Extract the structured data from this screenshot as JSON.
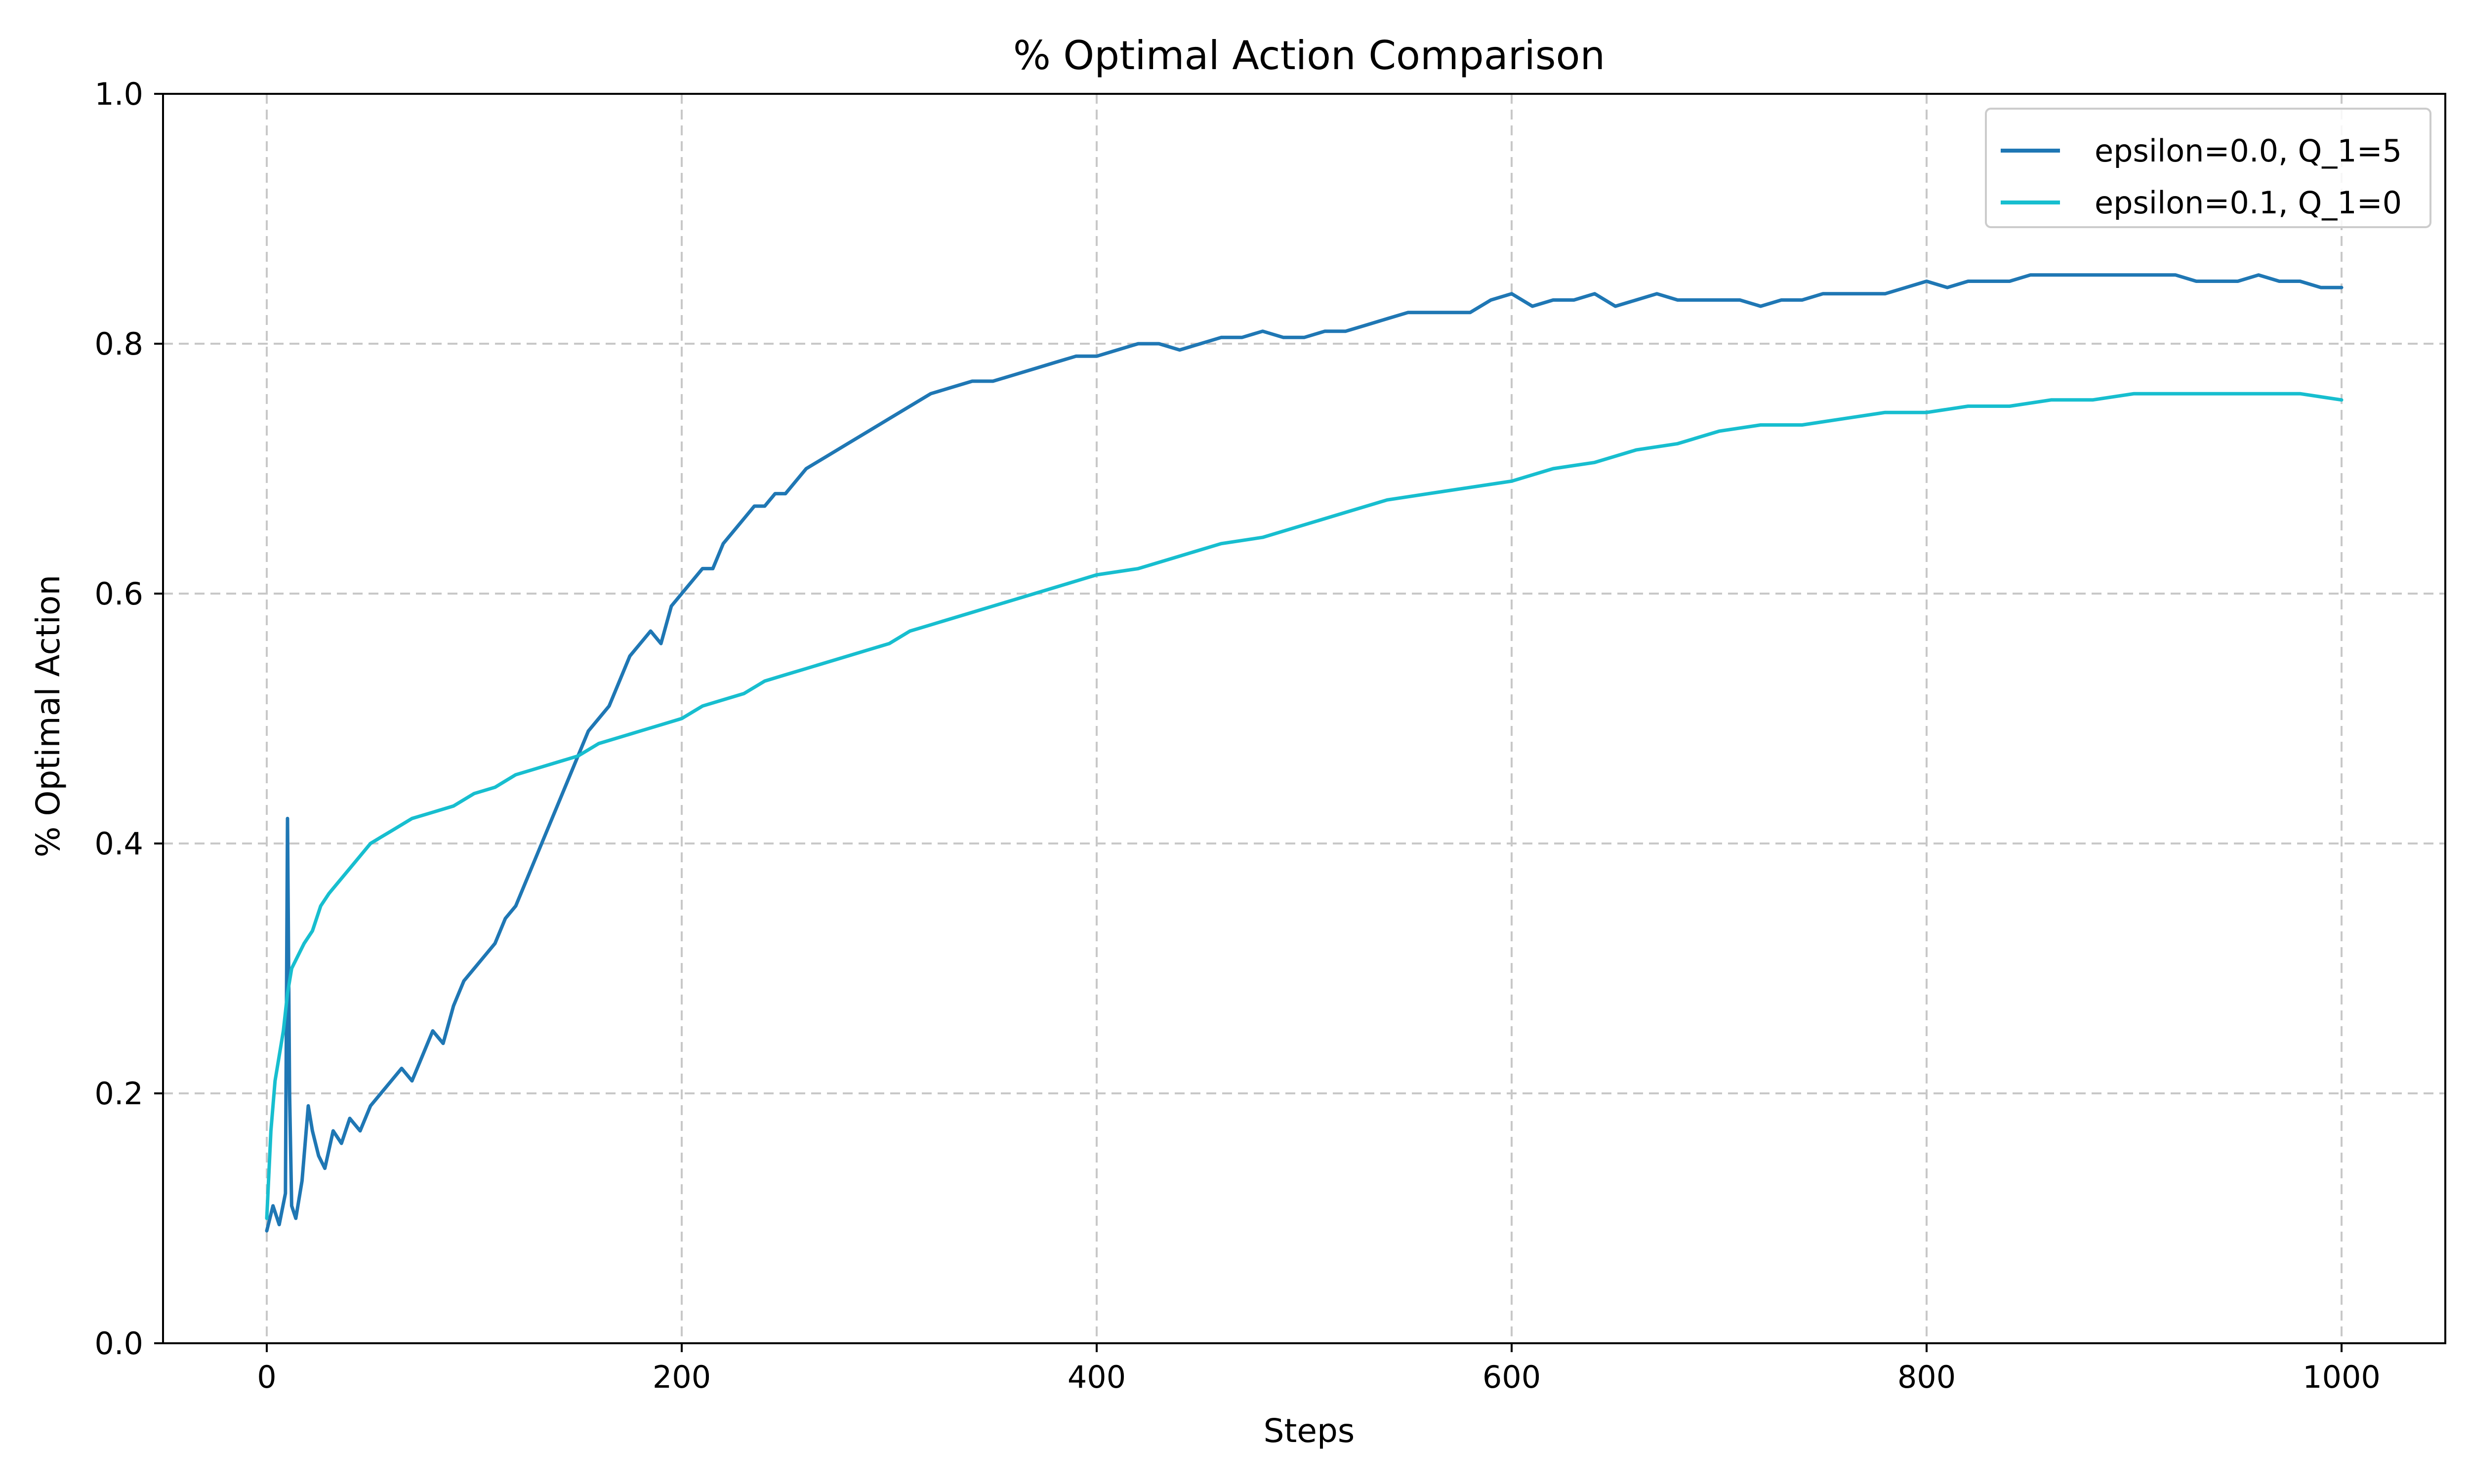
{
  "chart_data": {
    "type": "line",
    "title": "% Optimal Action Comparison",
    "xlabel": "Steps",
    "ylabel": "% Optimal Action",
    "xlim": [
      -50,
      1050
    ],
    "ylim": [
      0.0,
      1.0
    ],
    "x_ticks": [
      0,
      200,
      400,
      600,
      800,
      1000
    ],
    "x_tick_labels": [
      "0",
      "200",
      "400",
      "600",
      "800",
      "1000"
    ],
    "y_ticks": [
      0.0,
      0.2,
      0.4,
      0.6,
      0.8,
      1.0
    ],
    "y_tick_labels": [
      "0.0",
      "0.2",
      "0.4",
      "0.6",
      "0.8",
      "1.0"
    ],
    "grid": true,
    "legend_position": "top-right",
    "series": [
      {
        "name": "epsilon=0.0, Q_1=5",
        "color": "#1f77b4",
        "x": [
          0,
          3,
          6,
          9,
          10,
          11,
          12,
          14,
          17,
          20,
          22,
          25,
          28,
          32,
          36,
          40,
          45,
          50,
          55,
          60,
          65,
          70,
          75,
          80,
          85,
          90,
          95,
          100,
          105,
          110,
          115,
          120,
          125,
          130,
          135,
          140,
          145,
          150,
          155,
          160,
          165,
          170,
          175,
          180,
          185,
          190,
          195,
          200,
          205,
          210,
          215,
          220,
          225,
          230,
          235,
          240,
          245,
          250,
          255,
          260,
          270,
          280,
          290,
          300,
          310,
          320,
          330,
          340,
          350,
          360,
          370,
          380,
          390,
          400,
          410,
          420,
          430,
          440,
          450,
          460,
          470,
          480,
          490,
          500,
          510,
          520,
          530,
          540,
          550,
          560,
          570,
          580,
          590,
          600,
          610,
          620,
          630,
          640,
          650,
          660,
          670,
          680,
          690,
          700,
          710,
          720,
          730,
          740,
          750,
          760,
          770,
          780,
          790,
          800,
          810,
          820,
          830,
          840,
          850,
          860,
          870,
          880,
          890,
          900,
          910,
          920,
          930,
          940,
          950,
          960,
          970,
          980,
          990,
          1000
        ],
        "y": [
          0.09,
          0.11,
          0.095,
          0.12,
          0.42,
          0.2,
          0.11,
          0.1,
          0.13,
          0.19,
          0.17,
          0.15,
          0.14,
          0.17,
          0.16,
          0.18,
          0.17,
          0.19,
          0.2,
          0.21,
          0.22,
          0.21,
          0.23,
          0.25,
          0.24,
          0.27,
          0.29,
          0.3,
          0.31,
          0.32,
          0.34,
          0.35,
          0.37,
          0.39,
          0.41,
          0.43,
          0.45,
          0.47,
          0.49,
          0.5,
          0.51,
          0.53,
          0.55,
          0.56,
          0.57,
          0.56,
          0.59,
          0.6,
          0.61,
          0.62,
          0.62,
          0.64,
          0.65,
          0.66,
          0.67,
          0.67,
          0.68,
          0.68,
          0.69,
          0.7,
          0.71,
          0.72,
          0.73,
          0.74,
          0.75,
          0.76,
          0.765,
          0.77,
          0.77,
          0.775,
          0.78,
          0.785,
          0.79,
          0.79,
          0.795,
          0.8,
          0.8,
          0.795,
          0.8,
          0.805,
          0.805,
          0.81,
          0.805,
          0.805,
          0.81,
          0.81,
          0.815,
          0.82,
          0.825,
          0.825,
          0.825,
          0.825,
          0.835,
          0.84,
          0.83,
          0.835,
          0.835,
          0.84,
          0.83,
          0.835,
          0.84,
          0.835,
          0.835,
          0.835,
          0.835,
          0.83,
          0.835,
          0.835,
          0.84,
          0.84,
          0.84,
          0.84,
          0.845,
          0.85,
          0.845,
          0.85,
          0.85,
          0.85,
          0.855,
          0.855,
          0.855,
          0.855,
          0.855,
          0.855,
          0.855,
          0.855,
          0.85,
          0.85,
          0.85,
          0.855,
          0.85,
          0.85,
          0.845,
          0.845
        ]
      },
      {
        "name": "epsilon=0.1, Q_1=0",
        "color": "#17becf",
        "x": [
          0,
          2,
          4,
          6,
          8,
          10,
          12,
          15,
          18,
          22,
          26,
          30,
          35,
          40,
          45,
          50,
          55,
          60,
          70,
          80,
          90,
          100,
          110,
          120,
          130,
          140,
          150,
          160,
          170,
          180,
          190,
          200,
          210,
          220,
          230,
          240,
          250,
          260,
          270,
          280,
          290,
          300,
          310,
          320,
          330,
          340,
          350,
          360,
          370,
          380,
          390,
          400,
          420,
          440,
          460,
          480,
          500,
          520,
          540,
          560,
          580,
          600,
          620,
          640,
          660,
          680,
          700,
          720,
          740,
          760,
          780,
          800,
          820,
          840,
          860,
          880,
          900,
          920,
          940,
          960,
          980,
          1000
        ],
        "y": [
          0.1,
          0.17,
          0.21,
          0.23,
          0.25,
          0.28,
          0.3,
          0.31,
          0.32,
          0.33,
          0.35,
          0.36,
          0.37,
          0.38,
          0.39,
          0.4,
          0.405,
          0.41,
          0.42,
          0.425,
          0.43,
          0.44,
          0.445,
          0.455,
          0.46,
          0.465,
          0.47,
          0.48,
          0.485,
          0.49,
          0.495,
          0.5,
          0.51,
          0.515,
          0.52,
          0.53,
          0.535,
          0.54,
          0.545,
          0.55,
          0.555,
          0.56,
          0.57,
          0.575,
          0.58,
          0.585,
          0.59,
          0.595,
          0.6,
          0.605,
          0.61,
          0.615,
          0.62,
          0.63,
          0.64,
          0.645,
          0.655,
          0.665,
          0.675,
          0.68,
          0.685,
          0.69,
          0.7,
          0.705,
          0.715,
          0.72,
          0.73,
          0.735,
          0.735,
          0.74,
          0.745,
          0.745,
          0.75,
          0.75,
          0.755,
          0.755,
          0.76,
          0.76,
          0.76,
          0.76,
          0.76,
          0.755
        ]
      }
    ]
  }
}
